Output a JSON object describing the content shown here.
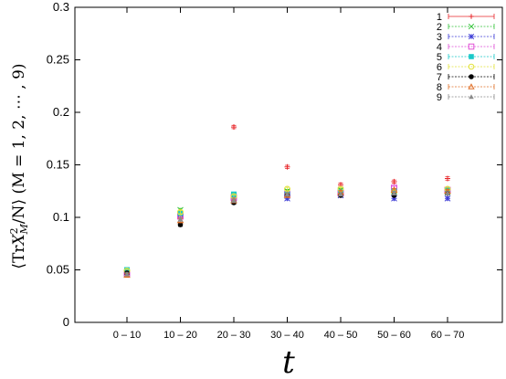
{
  "chart_data": {
    "type": "scatter",
    "title": "",
    "xlabel": "t",
    "ylabel": "⟨TrX²_M/N⟩ (M = 1, 2, ⋯, 9)",
    "ylabel_parts": {
      "open": "⟨Tr",
      "X": "X",
      "sup": "2",
      "sub": "M",
      "rest": "/N⟩ (M = 1, 2, ⋯ , 9)"
    },
    "categories": [
      "0 – 10",
      "10 – 20",
      "20 – 30",
      "30 – 40",
      "40 – 50",
      "50 – 60",
      "60 – 70"
    ],
    "ylim": [
      0,
      0.3
    ],
    "yticks": [
      "0",
      "0.05",
      "0.1",
      "0.15",
      "0.2",
      "0.25",
      "0.3"
    ],
    "legend_position": "top-right",
    "error_bars": true,
    "series": [
      {
        "name": "1",
        "color": "#e8262a",
        "marker": "plus",
        "values": [
          0.047,
          0.1,
          0.186,
          0.148,
          0.131,
          0.134,
          0.137
        ]
      },
      {
        "name": "2",
        "color": "#33c33a",
        "marker": "cross",
        "values": [
          0.048,
          0.107,
          0.121,
          0.125,
          0.126,
          0.124,
          0.124
        ]
      },
      {
        "name": "3",
        "color": "#3c3bd6",
        "marker": "star",
        "values": [
          0.046,
          0.103,
          0.118,
          0.118,
          0.121,
          0.118,
          0.118
        ]
      },
      {
        "name": "4",
        "color": "#e04fd6",
        "marker": "square",
        "values": [
          0.047,
          0.101,
          0.119,
          0.122,
          0.123,
          0.128,
          0.126
        ]
      },
      {
        "name": "5",
        "color": "#19c9c9",
        "marker": "filled-square",
        "values": [
          0.05,
          0.104,
          0.122,
          0.122,
          0.124,
          0.125,
          0.126
        ]
      },
      {
        "name": "6",
        "color": "#e2e23a",
        "marker": "circle",
        "values": [
          0.049,
          0.105,
          0.12,
          0.127,
          0.127,
          0.124,
          0.127
        ]
      },
      {
        "name": "7",
        "color": "#000000",
        "marker": "filled-circle",
        "values": [
          0.047,
          0.093,
          0.114,
          0.121,
          0.121,
          0.121,
          0.123
        ]
      },
      {
        "name": "8",
        "color": "#e07028",
        "marker": "triangle",
        "values": [
          0.045,
          0.097,
          0.116,
          0.121,
          0.124,
          0.126,
          0.125
        ]
      },
      {
        "name": "9",
        "color": "#8a8a8a",
        "marker": "filled-triangle",
        "values": [
          0.046,
          0.098,
          0.116,
          0.122,
          0.122,
          0.123,
          0.123
        ]
      }
    ]
  }
}
